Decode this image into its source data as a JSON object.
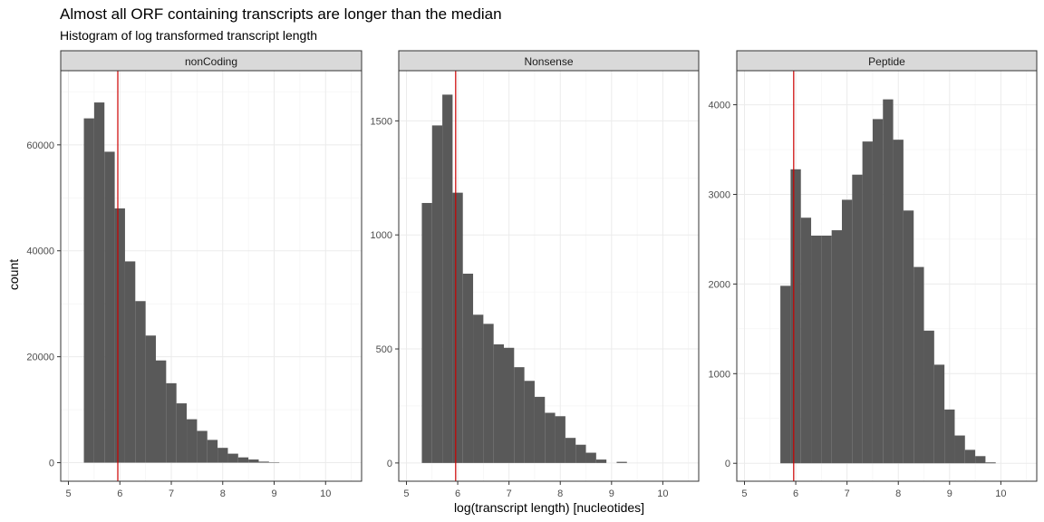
{
  "chart_data": {
    "type": "bar",
    "title": "Almost all ORF containing transcripts are longer than the median",
    "subtitle": "Histogram of log transformed transcript length",
    "xlabel": "log(transcript length) [nucleotides]",
    "ylabel": "count",
    "xlim": [
      4.85,
      10.7
    ],
    "x_ticks": [
      5,
      6,
      7,
      8,
      9,
      10
    ],
    "bin_width": 0.2,
    "grid": true,
    "median_line": {
      "x": 5.96,
      "color": "#cc0000"
    },
    "bar_color": "#595959",
    "panels": [
      {
        "name": "nonCoding",
        "ylim": [
          -3500,
          74000
        ],
        "y_ticks": [
          0,
          20000,
          40000,
          60000
        ],
        "bins": [
          {
            "x0": 5.3,
            "count": 65000
          },
          {
            "x0": 5.5,
            "count": 68000
          },
          {
            "x0": 5.7,
            "count": 58700
          },
          {
            "x0": 5.9,
            "count": 48000
          },
          {
            "x0": 6.1,
            "count": 38000
          },
          {
            "x0": 6.3,
            "count": 30500
          },
          {
            "x0": 6.5,
            "count": 24000
          },
          {
            "x0": 6.7,
            "count": 19300
          },
          {
            "x0": 6.9,
            "count": 15000
          },
          {
            "x0": 7.1,
            "count": 11200
          },
          {
            "x0": 7.3,
            "count": 8200
          },
          {
            "x0": 7.5,
            "count": 6000
          },
          {
            "x0": 7.7,
            "count": 4300
          },
          {
            "x0": 7.9,
            "count": 2800
          },
          {
            "x0": 8.1,
            "count": 1700
          },
          {
            "x0": 8.3,
            "count": 1000
          },
          {
            "x0": 8.5,
            "count": 600
          },
          {
            "x0": 8.7,
            "count": 200
          },
          {
            "x0": 8.9,
            "count": 50
          }
        ]
      },
      {
        "name": "Nonsense",
        "ylim": [
          -80,
          1720
        ],
        "y_ticks": [
          0,
          500,
          1000,
          1500
        ],
        "bins": [
          {
            "x0": 5.3,
            "count": 1140
          },
          {
            "x0": 5.5,
            "count": 1480
          },
          {
            "x0": 5.7,
            "count": 1615
          },
          {
            "x0": 5.9,
            "count": 1185
          },
          {
            "x0": 6.1,
            "count": 830
          },
          {
            "x0": 6.3,
            "count": 650
          },
          {
            "x0": 6.5,
            "count": 610
          },
          {
            "x0": 6.7,
            "count": 520
          },
          {
            "x0": 6.9,
            "count": 505
          },
          {
            "x0": 7.1,
            "count": 420
          },
          {
            "x0": 7.3,
            "count": 360
          },
          {
            "x0": 7.5,
            "count": 290
          },
          {
            "x0": 7.7,
            "count": 220
          },
          {
            "x0": 7.9,
            "count": 205
          },
          {
            "x0": 8.1,
            "count": 110
          },
          {
            "x0": 8.3,
            "count": 80
          },
          {
            "x0": 8.5,
            "count": 45
          },
          {
            "x0": 8.7,
            "count": 15
          },
          {
            "x0": 9.1,
            "count": 5
          }
        ]
      },
      {
        "name": "Peptide",
        "ylim": [
          -200,
          4380
        ],
        "y_ticks": [
          0,
          1000,
          2000,
          3000,
          4000
        ],
        "bins": [
          {
            "x0": 5.7,
            "count": 1980
          },
          {
            "x0": 5.9,
            "count": 3280
          },
          {
            "x0": 6.1,
            "count": 2740
          },
          {
            "x0": 6.3,
            "count": 2540
          },
          {
            "x0": 6.5,
            "count": 2540
          },
          {
            "x0": 6.7,
            "count": 2600
          },
          {
            "x0": 6.9,
            "count": 2940
          },
          {
            "x0": 7.1,
            "count": 3220
          },
          {
            "x0": 7.3,
            "count": 3590
          },
          {
            "x0": 7.5,
            "count": 3840
          },
          {
            "x0": 7.7,
            "count": 4060
          },
          {
            "x0": 7.9,
            "count": 3610
          },
          {
            "x0": 8.1,
            "count": 2820
          },
          {
            "x0": 8.3,
            "count": 2190
          },
          {
            "x0": 8.5,
            "count": 1480
          },
          {
            "x0": 8.7,
            "count": 1100
          },
          {
            "x0": 8.9,
            "count": 600
          },
          {
            "x0": 9.1,
            "count": 310
          },
          {
            "x0": 9.3,
            "count": 150
          },
          {
            "x0": 9.5,
            "count": 80
          },
          {
            "x0": 9.7,
            "count": 10
          }
        ]
      }
    ]
  }
}
